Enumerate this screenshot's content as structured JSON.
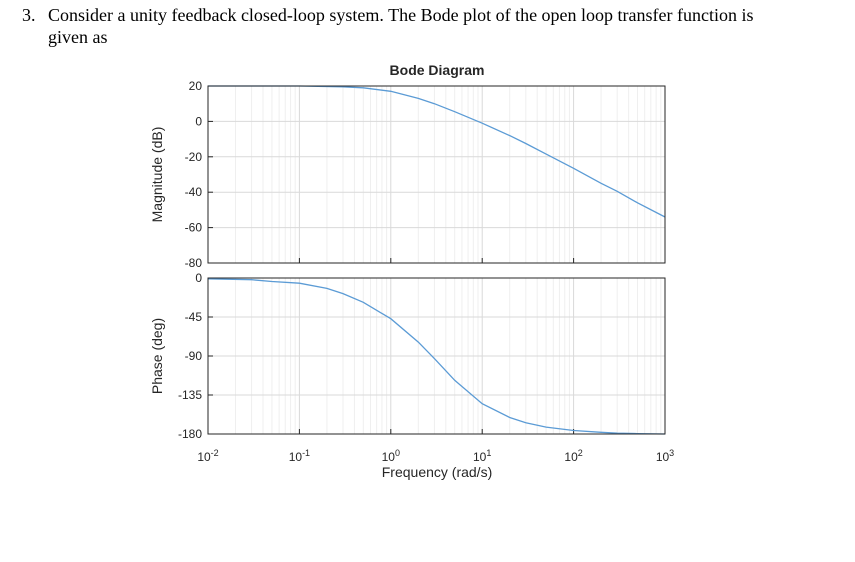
{
  "question": {
    "number": "3.",
    "line1": "Consider a unity feedback closed-loop system. The Bode plot of the open loop transfer function is",
    "line2": "given as"
  },
  "chart_data": {
    "type": "line",
    "title": "Bode Diagram",
    "xlabel": "Frequency (rad/s)",
    "x_scale": "log",
    "xlim": [
      0.01,
      1000
    ],
    "x_ticks": [
      {
        "base": "10",
        "exp": "-2"
      },
      {
        "base": "10",
        "exp": "-1"
      },
      {
        "base": "10",
        "exp": "0"
      },
      {
        "base": "10",
        "exp": "1"
      },
      {
        "base": "10",
        "exp": "2"
      },
      {
        "base": "10",
        "exp": "3"
      }
    ],
    "grid": true,
    "line_color": "#5b9bd5",
    "panels": [
      {
        "name": "magnitude",
        "ylabel": "Magnitude (dB)",
        "ylim": [
          -80,
          20
        ],
        "y_ticks": [
          "20",
          "0",
          "-20",
          "-40",
          "-60",
          "-80"
        ],
        "series": [
          {
            "x": [
              0.01,
              0.03,
              0.1,
              0.3,
              0.5,
              1,
              2,
              3,
              5,
              10,
              20,
              30,
              50,
              100,
              200,
              300,
              500,
              1000
            ],
            "values": [
              20,
              20,
              20,
              19.5,
              19,
              17,
              13,
              10,
              5.5,
              -1,
              -8,
              -12.5,
              -18.5,
              -26.5,
              -35,
              -39.5,
              -46,
              -54
            ]
          }
        ]
      },
      {
        "name": "phase",
        "ylabel": "Phase (deg)",
        "ylim": [
          -180,
          0
        ],
        "y_ticks": [
          "0",
          "-45",
          "-90",
          "-135",
          "-180"
        ],
        "series": [
          {
            "x": [
              0.01,
              0.03,
              0.05,
              0.1,
              0.2,
              0.3,
              0.5,
              1,
              2,
              3,
              5,
              10,
              20,
              30,
              50,
              100,
              200,
              300,
              500,
              1000
            ],
            "values": [
              -1,
              -2,
              -4,
              -6,
              -12,
              -18,
              -28,
              -47,
              -74,
              -93,
              -118,
              -145,
              -161,
              -167,
              -172,
              -176,
              -178,
              -179,
              -179.5,
              -180
            ]
          }
        ]
      }
    ]
  }
}
